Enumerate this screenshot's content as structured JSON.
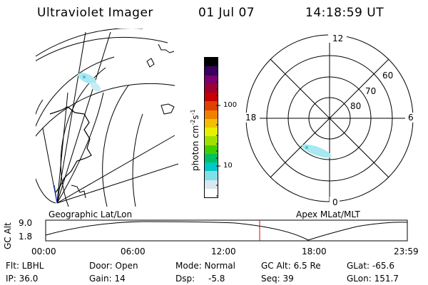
{
  "header": {
    "title": "Ultraviolet Imager",
    "date": "01 Jul 07",
    "time": "14:18:59 UT"
  },
  "colorbar": {
    "label": "photon cm",
    "label_sup1": "-2",
    "label_mid": "s",
    "label_sup2": "-1",
    "ticks": [
      "100",
      "10"
    ],
    "colors": [
      "#000000",
      "#3a0060",
      "#7a0070",
      "#a00030",
      "#c80000",
      "#e04000",
      "#f08000",
      "#f0c000",
      "#e8f000",
      "#a0e000",
      "#40d000",
      "#00c060",
      "#00c8c8",
      "#80e0e8",
      "#d8e8f0",
      "#ffffff"
    ]
  },
  "polar": {
    "mlt_labels": [
      "12",
      "18",
      "6",
      "0"
    ],
    "lat_labels": [
      "60",
      "70",
      "80"
    ]
  },
  "labels": {
    "geo": "Geographic Lat/Lon",
    "apex": "Apex MLat/MLT"
  },
  "timeline": {
    "axis_title": "GC Alt",
    "y_ticks": [
      "9.0",
      "1.8"
    ],
    "x_ticks": [
      "00:00",
      "06:00",
      "12:00",
      "18:00",
      "23:59"
    ],
    "marker_color": "#e00000"
  },
  "info": {
    "flt": "Flt: LBHL",
    "ip": "IP: 36.0",
    "door": "Door: Open",
    "gain": "Gain: 14",
    "mode": "Mode: Normal",
    "dsp_label": "Dsp:",
    "dsp_value": "-5.8",
    "gcalt": "GC Alt: 6.5 Re",
    "seq": "Seq: 39",
    "glat": "GLat: -65.6",
    "glon": "GLon: 151.7"
  }
}
